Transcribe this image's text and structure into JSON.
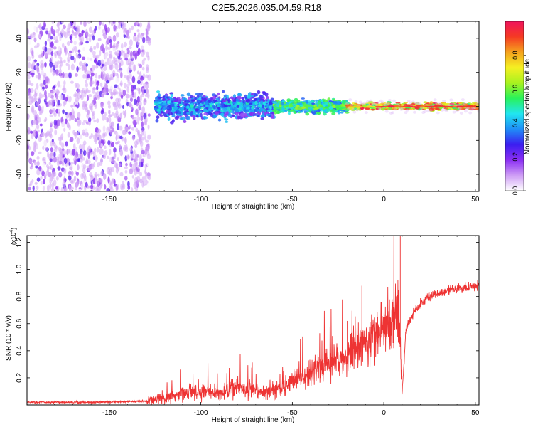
{
  "title": "C2E5.2026.035.04.59.R18",
  "chart_data": [
    {
      "type": "heatmap",
      "xlabel": "Height of straight line (km)",
      "ylabel": "Frequency (Hz)",
      "xlim": [
        -195,
        52
      ],
      "ylim": [
        -50,
        50
      ],
      "xticks": [
        -150,
        -100,
        -50,
        0,
        50
      ],
      "yticks": [
        -40,
        -20,
        0,
        20,
        40
      ],
      "colorbar": {
        "label": "Normalized spectral amplitude",
        "range": [
          0,
          1
        ],
        "ticks": [
          "0.0",
          "0.2",
          "0.4",
          "0.6",
          "0.8"
        ],
        "colors": [
          "#ffffff",
          "#ce9cf5",
          "#8b2ff3",
          "#3b1ef0",
          "#1f8ef7",
          "#21e6f0",
          "#29f25a",
          "#a8f21f",
          "#f5f022",
          "#f5a21e",
          "#f53a23",
          "#f0145c"
        ]
      },
      "regions": [
        {
          "x": [
            -195,
            -128
          ],
          "freq_spread": 50,
          "amplitude": [
            0.0,
            0.25
          ]
        },
        {
          "x": [
            -125,
            -60
          ],
          "freq_spread": 8,
          "amplitude": [
            0.15,
            0.45
          ]
        },
        {
          "x": [
            -60,
            -20
          ],
          "freq_spread": 4,
          "amplitude": [
            0.3,
            0.6
          ]
        },
        {
          "x": [
            -20,
            52
          ],
          "freq_spread": 2,
          "amplitude": [
            0.5,
            1.0
          ]
        }
      ]
    },
    {
      "type": "line",
      "xlabel": "Height of straight line (km)",
      "ylabel": "SNR (10 * v/v)",
      "y_multiplier": "(x10",
      "y_multiplier_exp": "4",
      "xlim": [
        -195,
        52
      ],
      "ylim": [
        0,
        1.25
      ],
      "xticks": [
        -150,
        -100,
        -50,
        0,
        50
      ],
      "yticks": [
        "0.2",
        "0.4",
        "0.6",
        "0.8",
        "1.0",
        "1.2"
      ],
      "series": [
        {
          "color": "#ee3333",
          "x": [
            -195,
            -180,
            -160,
            -140,
            -130,
            -120,
            -110,
            -100,
            -90,
            -80,
            -70,
            -60,
            -50,
            -40,
            -30,
            -20,
            -15,
            -10,
            -5,
            0,
            5,
            8,
            9,
            10,
            11,
            12,
            15,
            20,
            25,
            30,
            40,
            52
          ],
          "y": [
            0.02,
            0.02,
            0.02,
            0.025,
            0.03,
            0.05,
            0.09,
            0.1,
            0.09,
            0.13,
            0.1,
            0.11,
            0.16,
            0.22,
            0.3,
            0.35,
            0.45,
            0.47,
            0.52,
            0.55,
            0.6,
            0.66,
            0.5,
            0.08,
            0.3,
            0.55,
            0.65,
            0.75,
            0.8,
            0.83,
            0.86,
            0.88
          ]
        }
      ],
      "spikes": [
        {
          "x": -12,
          "y": 0.88
        },
        {
          "x": 9,
          "y": 1.25
        },
        {
          "x": -20,
          "y": 0.62
        }
      ]
    }
  ]
}
